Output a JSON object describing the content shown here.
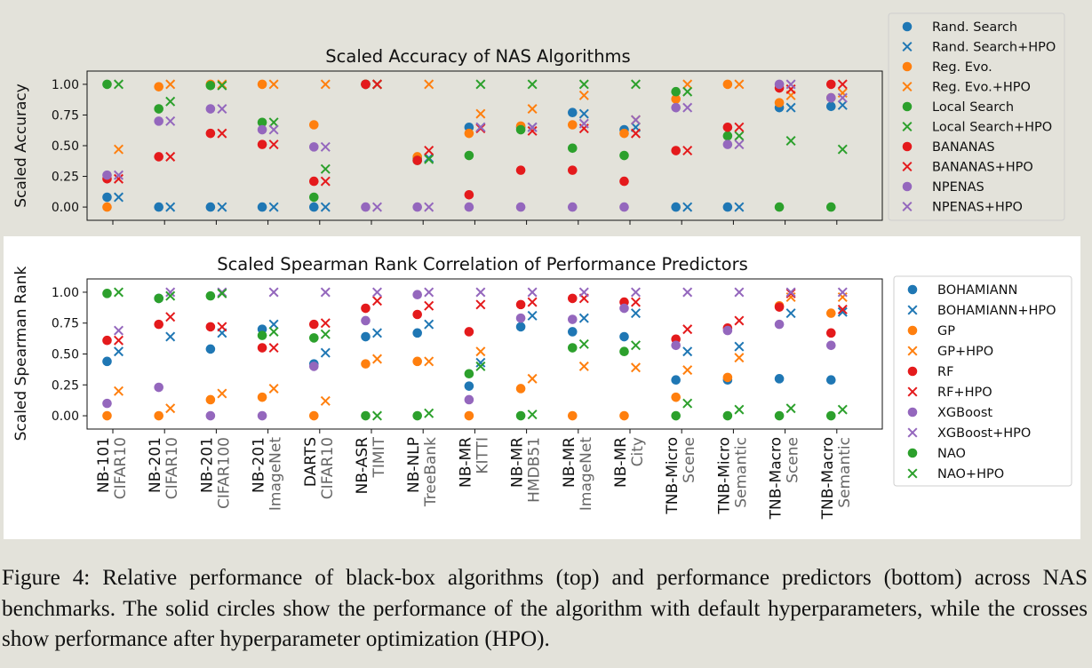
{
  "x_categories": [
    [
      "NB-101",
      "CIFAR10"
    ],
    [
      "NB-201",
      "CIFAR10"
    ],
    [
      "NB-201",
      "CIFAR100"
    ],
    [
      "NB-201",
      "ImageNet"
    ],
    [
      "DARTS",
      "CIFAR10"
    ],
    [
      "NB-ASR",
      "TIMIT"
    ],
    [
      "NB-NLP",
      "TreeBank"
    ],
    [
      "NB-MR",
      "KITTI"
    ],
    [
      "NB-MR",
      "HMDB51"
    ],
    [
      "NB-MR",
      "ImageNet"
    ],
    [
      "NB-MR",
      "City"
    ],
    [
      "TNB-Micro",
      "Scene"
    ],
    [
      "TNB-Micro",
      "Semantic"
    ],
    [
      "TNB-Macro",
      "Scene"
    ],
    [
      "TNB-Macro",
      "Semantic"
    ]
  ],
  "chart_data": [
    {
      "type": "scatter",
      "title": "Scaled Accuracy of NAS Algorithms",
      "ylabel": "Scaled Accuracy",
      "xlabel": "",
      "ylim": [
        -0.05,
        1.05
      ],
      "yticks": [
        "0.00",
        "0.25",
        "0.50",
        "0.75",
        "1.00"
      ],
      "grid": false,
      "legend": "outside right",
      "series": [
        {
          "name": "Rand. Search",
          "marker": "circle",
          "color": "#1f77b4",
          "values": [
            0.08,
            0,
            0,
            0,
            0,
            1.0,
            0.4,
            0.65,
            0.65,
            0.77,
            0.63,
            0,
            0,
            0.81,
            0.82
          ]
        },
        {
          "name": "Rand. Search+HPO",
          "marker": "x",
          "color": "#1f77b4",
          "values": [
            0.08,
            0,
            0,
            0,
            0,
            1.0,
            0.4,
            0.65,
            0.65,
            0.76,
            0.65,
            0,
            0,
            0.81,
            0.83
          ]
        },
        {
          "name": "Reg. Evo.",
          "marker": "circle",
          "color": "#ff7f0e",
          "values": [
            0,
            0.98,
            1.0,
            1.0,
            0.67,
            1.0,
            0.41,
            0.6,
            0.66,
            0.67,
            0.6,
            0.88,
            1.0,
            0.85,
            0.89
          ]
        },
        {
          "name": "Reg. Evo.+HPO",
          "marker": "x",
          "color": "#ff7f0e",
          "values": [
            0.47,
            1.0,
            1.0,
            1.0,
            1.0,
            1.0,
            1.0,
            0.76,
            0.8,
            0.91,
            0.71,
            1.0,
            1.0,
            0.91,
            0.93
          ]
        },
        {
          "name": "Local Search",
          "marker": "circle",
          "color": "#2ca02c",
          "values": [
            1.0,
            0.8,
            0.99,
            0.69,
            0.08,
            1.0,
            0.38,
            0.42,
            0.63,
            0.48,
            0.42,
            0.94,
            0.58,
            0,
            0
          ]
        },
        {
          "name": "Local Search+HPO",
          "marker": "x",
          "color": "#2ca02c",
          "values": [
            1.0,
            0.86,
            0.99,
            0.69,
            0.31,
            1.0,
            0.39,
            1.0,
            1.0,
            1.0,
            1.0,
            0.94,
            0.58,
            0.54,
            0.47
          ]
        },
        {
          "name": "BANANAS",
          "marker": "circle",
          "color": "#e41a1c",
          "values": [
            0.23,
            0.41,
            0.6,
            0.51,
            0.21,
            1.0,
            0.38,
            0.1,
            0.3,
            0.3,
            0.21,
            0.46,
            0.65,
            0.97,
            1.0
          ]
        },
        {
          "name": "BANANAS+HPO",
          "marker": "x",
          "color": "#e41a1c",
          "values": [
            0.23,
            0.41,
            0.6,
            0.51,
            0.21,
            1.0,
            0.46,
            0.64,
            0.62,
            0.64,
            0.6,
            0.46,
            0.65,
            0.96,
            1.0
          ]
        },
        {
          "name": "NPENAS",
          "marker": "circle",
          "color": "#9467bd",
          "values": [
            0.26,
            0.7,
            0.8,
            0.63,
            0.49,
            0,
            0,
            0,
            0,
            0,
            0,
            0.81,
            0.51,
            1.0,
            0.89
          ]
        },
        {
          "name": "NPENAS+HPO",
          "marker": "x",
          "color": "#9467bd",
          "values": [
            0.26,
            0.7,
            0.8,
            0.63,
            0.49,
            0,
            0,
            0.65,
            0.65,
            0.68,
            0.71,
            0.81,
            0.51,
            1.0,
            0.89
          ]
        }
      ]
    },
    {
      "type": "scatter",
      "title": "Scaled Spearman Rank Correlation of Performance Predictors",
      "ylabel": "Scaled Spearman Rank",
      "xlabel": "",
      "ylim": [
        -0.05,
        1.05
      ],
      "yticks": [
        "0.00",
        "0.25",
        "0.50",
        "0.75",
        "1.00"
      ],
      "grid": false,
      "legend": "outside right",
      "series": [
        {
          "name": "BOHAMIANN",
          "marker": "circle",
          "color": "#1f77b4",
          "values": [
            0.44,
            0.95,
            0.54,
            0.7,
            0.42,
            0.64,
            0.67,
            0.24,
            0.72,
            0.68,
            0.64,
            0.29,
            0.29,
            0.3,
            0.29
          ]
        },
        {
          "name": "BOHAMIANN+HPO",
          "marker": "x",
          "color": "#1f77b4",
          "values": [
            0.52,
            0.64,
            0.67,
            0.74,
            0.51,
            0.67,
            0.74,
            0.43,
            0.81,
            0.79,
            0.83,
            0.52,
            0.56,
            0.83,
            0.84
          ]
        },
        {
          "name": "GP",
          "marker": "circle",
          "color": "#ff7f0e",
          "values": [
            0,
            0,
            0.13,
            0.15,
            0,
            0.42,
            0.44,
            0,
            0.22,
            0,
            0,
            0.15,
            0.31,
            0.89,
            0.83
          ]
        },
        {
          "name": "GP+HPO",
          "marker": "x",
          "color": "#ff7f0e",
          "values": [
            0.2,
            0.06,
            0.18,
            0.22,
            0.12,
            0.46,
            0.44,
            0.52,
            0.3,
            0.4,
            0.39,
            0.37,
            0.47,
            0.96,
            0.96
          ]
        },
        {
          "name": "RF",
          "marker": "circle",
          "color": "#e41a1c",
          "values": [
            0.61,
            0.74,
            0.72,
            0.55,
            0.74,
            0.87,
            0.82,
            0.68,
            0.9,
            0.95,
            0.92,
            0.62,
            0.71,
            0.88,
            0.67
          ]
        },
        {
          "name": "RF+HPO",
          "marker": "x",
          "color": "#e41a1c",
          "values": [
            0.61,
            0.8,
            0.72,
            0.55,
            0.75,
            0.93,
            0.89,
            0.9,
            0.92,
            0.95,
            0.92,
            0.7,
            0.77,
            0.99,
            0.86
          ]
        },
        {
          "name": "XGBoost",
          "marker": "circle",
          "color": "#9467bd",
          "values": [
            0.1,
            0.23,
            0,
            0,
            0.4,
            0.77,
            0.98,
            0.13,
            0.79,
            0.78,
            0.87,
            0.57,
            0.69,
            0.74,
            0.57
          ]
        },
        {
          "name": "XGBoost+HPO",
          "marker": "x",
          "color": "#9467bd",
          "values": [
            0.69,
            1.0,
            1.0,
            1.0,
            1.0,
            1.0,
            1.0,
            1.0,
            1.0,
            1.0,
            1.0,
            1.0,
            1.0,
            1.0,
            1.0
          ]
        },
        {
          "name": "NAO",
          "marker": "circle",
          "color": "#2ca02c",
          "values": [
            0.99,
            0.95,
            0.97,
            0.65,
            0.63,
            0,
            0,
            0.34,
            0,
            0.55,
            0.52,
            0,
            0,
            0,
            0
          ]
        },
        {
          "name": "NAO+HPO",
          "marker": "x",
          "color": "#2ca02c",
          "values": [
            1.0,
            0.97,
            0.99,
            0.68,
            0.66,
            0,
            0.02,
            0.4,
            0.01,
            0.58,
            0.57,
            0.1,
            0.05,
            0.06,
            0.05
          ]
        }
      ]
    }
  ],
  "caption": "Figure 4: Relative performance of black-box algorithms (top) and performance predictors (bottom) across NAS benchmarks. The solid circles show the performance of the algorithm with default hyperparameters, while the crosses show performance after hyperparameter optimization (HPO)."
}
